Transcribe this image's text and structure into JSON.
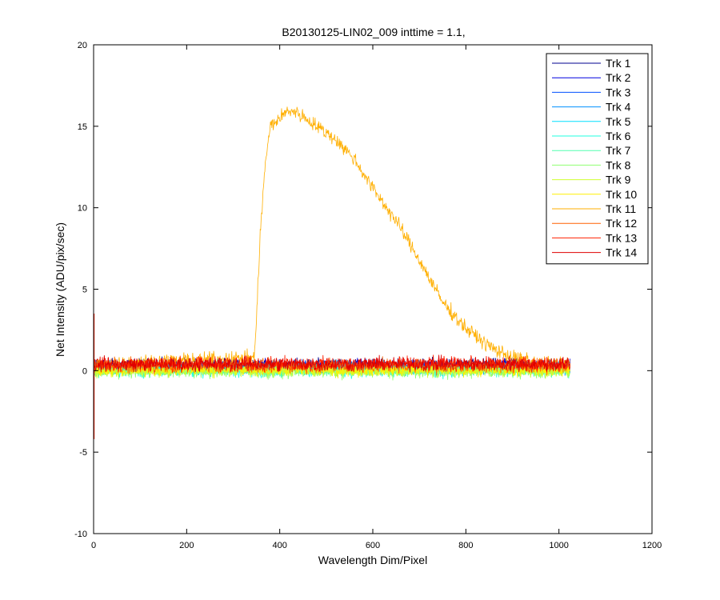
{
  "chart_data": {
    "type": "line",
    "title": "B20130125-LIN02_009 inttime = 1.1,",
    "xlabel": "Wavelength Dim/Pixel",
    "ylabel": "Net Intensity (ADU/pix/sec)",
    "xlim": [
      0,
      1200
    ],
    "ylim": [
      -10,
      20
    ],
    "xticks": [
      "0",
      "200",
      "400",
      "600",
      "800",
      "1000",
      "1200"
    ],
    "yticks": [
      "-10",
      "-5",
      "0",
      "5",
      "10",
      "15",
      "20"
    ],
    "grid": false,
    "legend_position": "top-right",
    "x_range": [
      1,
      1024
    ],
    "series": [
      {
        "name": "Trk 1",
        "color": "#00008f",
        "baseline": 0.35,
        "noise": 0.35
      },
      {
        "name": "Trk 2",
        "color": "#0000df",
        "baseline": 0.3,
        "noise": 0.35
      },
      {
        "name": "Trk 3",
        "color": "#0050ff",
        "baseline": 0.25,
        "noise": 0.35
      },
      {
        "name": "Trk 4",
        "color": "#0090ff",
        "baseline": 0.2,
        "noise": 0.35
      },
      {
        "name": "Trk 5",
        "color": "#00dfff",
        "baseline": 0.15,
        "noise": 0.35
      },
      {
        "name": "Trk 6",
        "color": "#20ffdf",
        "baseline": 0.0,
        "noise": 0.35
      },
      {
        "name": "Trk 7",
        "color": "#50ffaf",
        "baseline": 0.05,
        "noise": 0.35
      },
      {
        "name": "Trk 8",
        "color": "#8fff70",
        "baseline": -0.05,
        "noise": 0.35
      },
      {
        "name": "Trk 9",
        "color": "#cfff30",
        "baseline": 0.0,
        "noise": 0.35
      },
      {
        "name": "Trk 10",
        "color": "#ffef00",
        "baseline": 0.05,
        "noise": 0.35
      },
      {
        "name": "Trk 11",
        "color": "#ffaf00",
        "baseline": 0.4,
        "noise": 0.4,
        "peak": {
          "x": [
            1,
            345,
            350,
            358,
            370,
            380,
            400,
            420,
            440,
            480,
            520,
            560,
            600,
            650,
            700,
            750,
            800,
            850,
            900,
            920,
            950,
            1000,
            1024
          ],
          "y": [
            0.4,
            0.8,
            3,
            8.5,
            13,
            15,
            15.5,
            16.0,
            15.8,
            15.0,
            14.2,
            13.0,
            11.2,
            9.2,
            6.8,
            4.2,
            2.6,
            1.5,
            0.8,
            0.7,
            0.5,
            0.45,
            0.4
          ]
        }
      },
      {
        "name": "Trk 12",
        "color": "#ff6000",
        "baseline": 0.3,
        "noise": 0.4
      },
      {
        "name": "Trk 13",
        "color": "#ff2000",
        "baseline": 0.4,
        "noise": 0.4
      },
      {
        "name": "Trk 14",
        "color": "#df0000",
        "baseline": 0.4,
        "noise": 0.4
      }
    ],
    "edge_spike": {
      "x": 1,
      "y": [
        3.5,
        -4.2
      ]
    }
  }
}
